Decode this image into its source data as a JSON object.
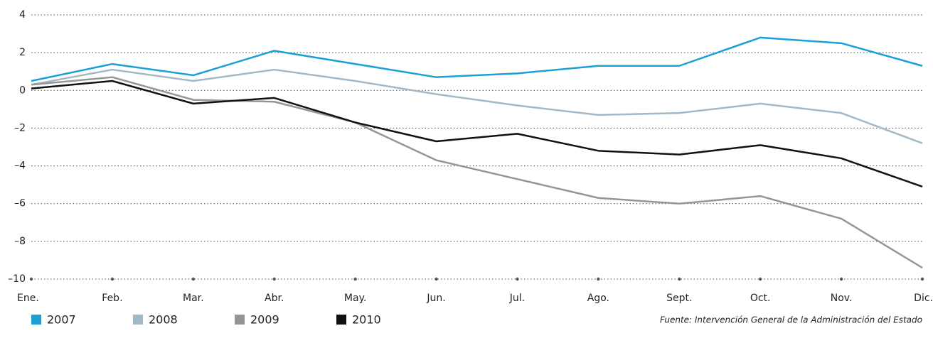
{
  "chart_data": {
    "type": "line",
    "categories": [
      "Ene.",
      "Feb.",
      "Mar.",
      "Abr.",
      "May.",
      "Jun.",
      "Jul.",
      "Ago.",
      "Sept.",
      "Oct.",
      "Nov.",
      "Dic."
    ],
    "series": [
      {
        "name": "2007",
        "color": "#1a9fd9",
        "values": [
          0.5,
          1.4,
          0.8,
          2.1,
          1.4,
          0.7,
          0.9,
          1.3,
          1.3,
          2.8,
          2.5,
          1.3
        ]
      },
      {
        "name": "2008",
        "color": "#a3b8c6",
        "values": [
          0.3,
          1.1,
          0.5,
          1.1,
          0.5,
          -0.2,
          -0.8,
          -1.3,
          -1.2,
          -0.7,
          -1.2,
          -2.8
        ]
      },
      {
        "name": "2009",
        "color": "#959595",
        "values": [
          0.3,
          0.7,
          -0.5,
          -0.6,
          -1.7,
          -3.7,
          -4.7,
          -5.7,
          -6.0,
          -5.6,
          -6.8,
          -9.4
        ]
      },
      {
        "name": "2010",
        "color": "#111111",
        "values": [
          0.1,
          0.5,
          -0.7,
          -0.4,
          -1.7,
          -2.7,
          -2.3,
          -3.2,
          -3.4,
          -2.9,
          -3.6,
          -5.1
        ]
      }
    ],
    "ylim": [
      -10,
      4
    ],
    "yticks": [
      {
        "value": -10,
        "label": "–10"
      },
      {
        "value": -8,
        "label": "–8"
      },
      {
        "value": -6,
        "label": "–6"
      },
      {
        "value": -4,
        "label": "–4"
      },
      {
        "value": -2,
        "label": "–2"
      },
      0,
      2,
      4
    ],
    "grid": true,
    "source": "Fuente: Intervención General de la Administración del Estado"
  }
}
